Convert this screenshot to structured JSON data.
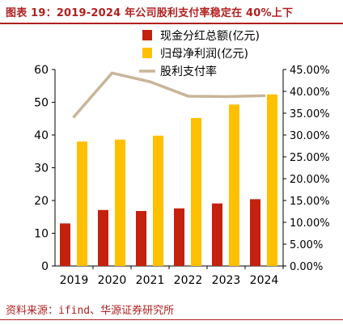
{
  "figure": {
    "title": "图表 19：2019-2024 年公司股利支付率稳定在 40%上下",
    "source": "资料来源：ifind、华源证券研究所"
  },
  "colors": {
    "dividend": "#c4210e",
    "net_profit": "#ffc000",
    "payout": "#c8b599",
    "title_red": "#b11f1f"
  },
  "chart_data": {
    "type": "bar",
    "categories": [
      "2019",
      "2020",
      "2021",
      "2022",
      "2023",
      "2024"
    ],
    "series": [
      {
        "name": "现金分红总额(亿元)",
        "kind": "bar",
        "axis": "left",
        "values": [
          13.0,
          17.1,
          16.8,
          17.6,
          19.1,
          20.4
        ]
      },
      {
        "name": "归母净利润(亿元)",
        "kind": "bar",
        "axis": "left",
        "values": [
          38.0,
          38.6,
          39.8,
          45.2,
          49.3,
          52.4
        ]
      },
      {
        "name": "股利支付率",
        "kind": "line",
        "axis": "right",
        "values": [
          34.2,
          44.2,
          42.2,
          38.9,
          38.8,
          39.0
        ]
      }
    ],
    "left_axis": {
      "min": 0,
      "max": 60,
      "ticks": [
        "0",
        "10",
        "20",
        "30",
        "40",
        "50",
        "60"
      ]
    },
    "right_axis": {
      "min": 0,
      "max": 45,
      "ticks": [
        "0.00%",
        "5.00%",
        "10.00%",
        "15.00%",
        "20.00%",
        "25.00%",
        "30.00%",
        "35.00%",
        "40.00%",
        "45.00%"
      ]
    },
    "legend_position": "top-center",
    "grid": false
  }
}
